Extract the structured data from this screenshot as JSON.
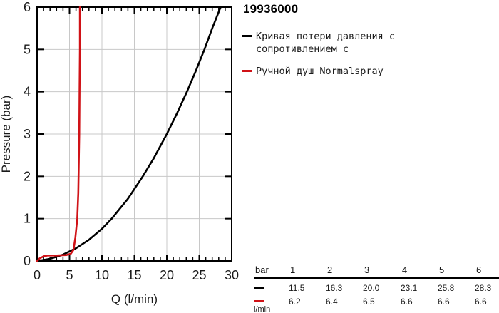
{
  "chart_data": {
    "type": "line",
    "title": "19936000",
    "xlabel": "Q (l/min)",
    "ylabel": "Pressure (bar)",
    "xlim": [
      0,
      30
    ],
    "ylim": [
      0,
      6
    ],
    "x_ticks": [
      0,
      5,
      10,
      15,
      20,
      25,
      30
    ],
    "y_ticks": [
      0,
      1,
      2,
      3,
      4,
      5,
      6
    ],
    "x_minor_tick_step": 1,
    "x_gridlines": [
      5,
      10,
      15,
      20,
      25
    ],
    "y_gridlines": [
      1,
      2,
      3,
      4,
      5
    ],
    "grid_color": "#c8c8c8",
    "axis_color": "#000000",
    "legend_position": "right",
    "series": [
      {
        "name": "Кривая потери давления с сопротивлением с",
        "color": "#000000",
        "pressure_bar": [
          1,
          2,
          3,
          4,
          5,
          6
        ],
        "flow_l_min": [
          11.5,
          16.3,
          20.0,
          23.1,
          25.8,
          28.3
        ],
        "path_points": [
          [
            0,
            0
          ],
          [
            2,
            0.05
          ],
          [
            4,
            0.15
          ],
          [
            6,
            0.3
          ],
          [
            8,
            0.5
          ],
          [
            10,
            0.76
          ],
          [
            11.5,
            1
          ],
          [
            14,
            1.47
          ],
          [
            16.3,
            2
          ],
          [
            18,
            2.43
          ],
          [
            20,
            3
          ],
          [
            21.6,
            3.5
          ],
          [
            23.1,
            4
          ],
          [
            24.5,
            4.5
          ],
          [
            25.8,
            5
          ],
          [
            27,
            5.5
          ],
          [
            28.3,
            6
          ]
        ]
      },
      {
        "name": "Ручной душ Normalspray",
        "color": "#d01217",
        "pressure_bar": [
          1,
          2,
          3,
          4,
          5,
          6
        ],
        "flow_l_min": [
          6.2,
          6.4,
          6.5,
          6.6,
          6.6,
          6.6
        ],
        "path_points": [
          [
            0,
            0
          ],
          [
            0.4,
            0.06
          ],
          [
            1,
            0.11
          ],
          [
            1.6,
            0.13
          ],
          [
            3,
            0.13
          ],
          [
            4.5,
            0.14
          ],
          [
            5.2,
            0.17
          ],
          [
            5.6,
            0.26
          ],
          [
            5.9,
            0.55
          ],
          [
            6.2,
            1
          ],
          [
            6.35,
            1.6
          ],
          [
            6.4,
            2
          ],
          [
            6.5,
            3
          ],
          [
            6.55,
            4
          ],
          [
            6.6,
            5
          ],
          [
            6.6,
            6
          ]
        ]
      }
    ]
  },
  "legend": {
    "items": [
      {
        "label": "Кривая потери давления с\nсопротивлением с",
        "color": "#000000"
      },
      {
        "label": "Ручной душ Normalspray",
        "color": "#d01217"
      }
    ]
  },
  "table": {
    "unit_header": "bar",
    "pressure_columns": [
      "1",
      "2",
      "3",
      "4",
      "5",
      "6"
    ],
    "rows": [
      {
        "series": "pressure-loss-curve",
        "marker_color": "#000000",
        "values": [
          "11.5",
          "16.3",
          "20.0",
          "23.1",
          "25.8",
          "28.3"
        ]
      },
      {
        "series": "handshower-normalspray",
        "marker_color": "#d01217",
        "values": [
          "6.2",
          "6.4",
          "6.5",
          "6.6",
          "6.6",
          "6.6"
        ]
      }
    ],
    "unit_label": "l/min"
  }
}
